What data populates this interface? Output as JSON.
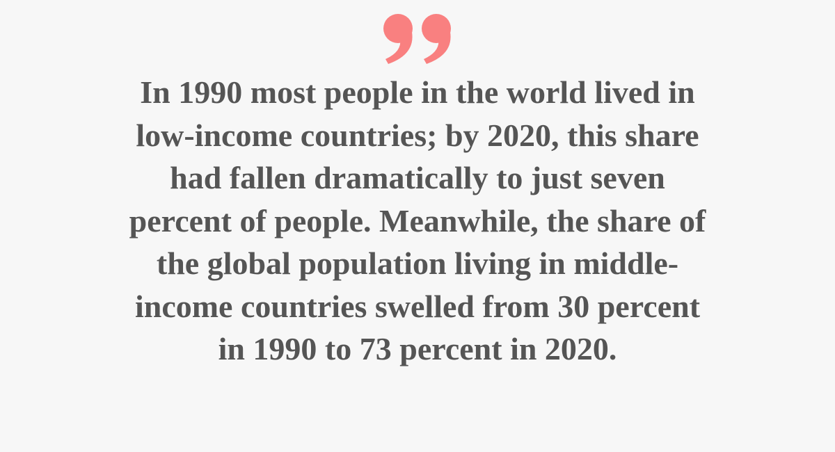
{
  "quote": {
    "lines": [
      "In 1990 most people in the world lived in",
      "low-income countries; by 2020, this share",
      "had fallen dramatically to just seven",
      "percent of people. Meanwhile, the share of",
      "the global population living in middle-",
      "income countries swelled from 30 percent",
      "in 1990 to 73 percent in 2020."
    ]
  }
}
